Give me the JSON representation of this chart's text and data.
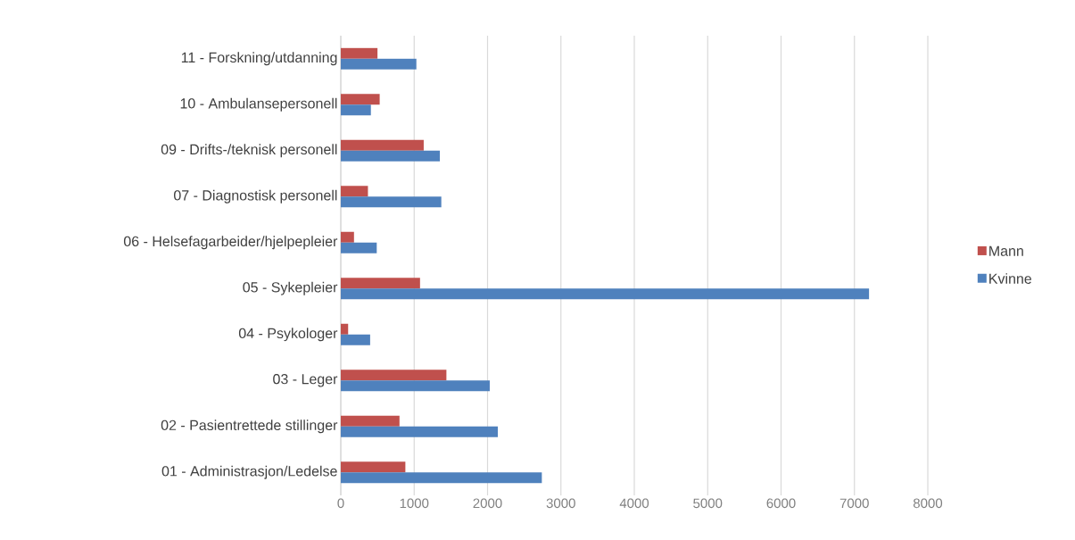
{
  "chart_data": {
    "type": "bar",
    "orientation": "horizontal",
    "categories": [
      "11 - Forskning/utdanning",
      "10 - Ambulansepersonell",
      "09 - Drifts-/teknisk personell",
      "07 - Diagnostisk personell",
      "06 - Helsefagarbeider/hjelpepleier",
      "05 - Sykepleier",
      "04 - Psykologer",
      "03 - Leger",
      "02 - Pasientrettede stillinger",
      "01 - Administrasjon/Ledelse"
    ],
    "series": [
      {
        "name": "Mann",
        "color": "#c0504d",
        "values": [
          500,
          530,
          1130,
          370,
          180,
          1080,
          100,
          1440,
          800,
          880
        ]
      },
      {
        "name": "Kvinne",
        "color": "#4f81bd",
        "values": [
          1030,
          410,
          1350,
          1370,
          490,
          7200,
          400,
          2030,
          2140,
          2740
        ]
      }
    ],
    "xlim": [
      0,
      8000
    ],
    "xticks": [
      0,
      1000,
      2000,
      3000,
      4000,
      5000,
      6000,
      7000,
      8000
    ],
    "grid": "x",
    "legend": "right"
  }
}
